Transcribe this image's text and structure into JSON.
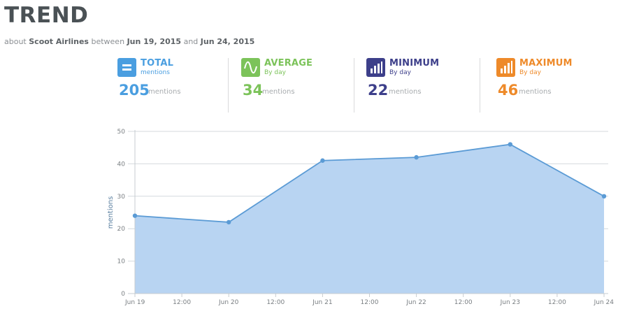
{
  "header": {
    "title": "TREND",
    "sub_about": "about",
    "sub_brand": "Scoot Airlines",
    "sub_between": "between",
    "sub_start": "Jun 19, 2015",
    "sub_and": "and",
    "sub_end": "Jun 24, 2015"
  },
  "stats": [
    {
      "label": "TOTAL",
      "sub": "mentions",
      "value": "205",
      "unit": "mentions",
      "color": "#4a9ee0",
      "icon": "equals-icon"
    },
    {
      "label": "AVERAGE",
      "sub": "By day",
      "value": "34",
      "unit": "mentions",
      "color": "#7cc35a",
      "icon": "wave-icon"
    },
    {
      "label": "MINIMUM",
      "sub": "By day",
      "value": "22",
      "unit": "mentions",
      "color": "#3d3f8a",
      "icon": "bars-low-icon"
    },
    {
      "label": "MAXIMUM",
      "sub": "By day",
      "value": "46",
      "unit": "mentions",
      "color": "#ee8a2a",
      "icon": "bars-high-icon"
    }
  ],
  "chart_data": {
    "type": "area",
    "x": [
      "Jun 19",
      "Jun 20",
      "Jun 21",
      "Jun 22",
      "Jun 23",
      "Jun 24"
    ],
    "x_tick_labels": [
      "Jun 19",
      "12:00",
      "Jun 20",
      "12:00",
      "Jun 21",
      "12:00",
      "Jun 22",
      "12:00",
      "Jun 23",
      "12:00",
      "Jun 24"
    ],
    "series": [
      {
        "values": [
          24,
          22,
          41,
          42,
          46,
          30
        ]
      }
    ],
    "ylabel": "mentions",
    "ylim": [
      0,
      50
    ],
    "yticks": [
      0,
      10,
      20,
      30,
      40,
      50
    ],
    "grid": true,
    "colors": {
      "line": "#5b9bd5",
      "fill": "#b8d4f2",
      "grid": "#d4d9de"
    }
  }
}
